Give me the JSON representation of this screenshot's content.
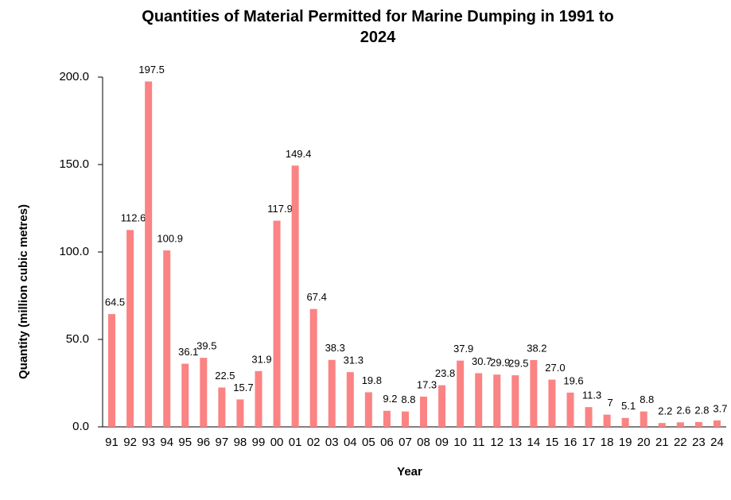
{
  "chart_data": {
    "type": "bar",
    "title": "Quantities of Material Permitted for Marine Dumping in 1991 to 2024",
    "x_label": "Year",
    "y_label": "Quantity (million cubic metres)",
    "categories": [
      "91",
      "92",
      "93",
      "94",
      "95",
      "96",
      "97",
      "98",
      "99",
      "00",
      "01",
      "02",
      "03",
      "04",
      "05",
      "06",
      "07",
      "08",
      "09",
      "10",
      "11",
      "12",
      "13",
      "14",
      "15",
      "16",
      "17",
      "18",
      "19",
      "20",
      "21",
      "22",
      "23",
      "24"
    ],
    "values": [
      64.5,
      112.6,
      197.5,
      100.9,
      36.1,
      39.5,
      22.5,
      15.7,
      31.9,
      117.9,
      149.4,
      67.4,
      38.3,
      31.3,
      19.8,
      9.2,
      8.8,
      17.3,
      23.8,
      37.9,
      30.7,
      29.9,
      29.5,
      38.2,
      27.0,
      19.6,
      11.3,
      7,
      5.1,
      8.8,
      2.2,
      2.6,
      2.8,
      3.7
    ],
    "value_labels": [
      "64.5",
      "112.6",
      "197.5",
      "100.9",
      "36.1",
      "39.5",
      "22.5",
      "15.7",
      "31.9",
      "117.9",
      "149.4",
      "67.4",
      "38.3",
      "31.3",
      "19.8",
      "9.2",
      "8.8",
      "17.3",
      "23.8",
      "37.9",
      "30.7",
      "29.9",
      "29.5",
      "38.2",
      "27.0",
      "19.6",
      "11.3",
      "7",
      "5.1",
      "8.8",
      "2.2",
      "2.6",
      "2.8",
      "3.7"
    ],
    "color": "#fb8383",
    "ylim": [
      0,
      200
    ],
    "yticks": [
      {
        "value": 0,
        "label": "0.0"
      },
      {
        "value": 50,
        "label": "50.0"
      },
      {
        "value": 100,
        "label": "100.0"
      },
      {
        "value": 150,
        "label": "150.0"
      },
      {
        "value": 200,
        "label": "200.0"
      }
    ],
    "grid": false
  }
}
